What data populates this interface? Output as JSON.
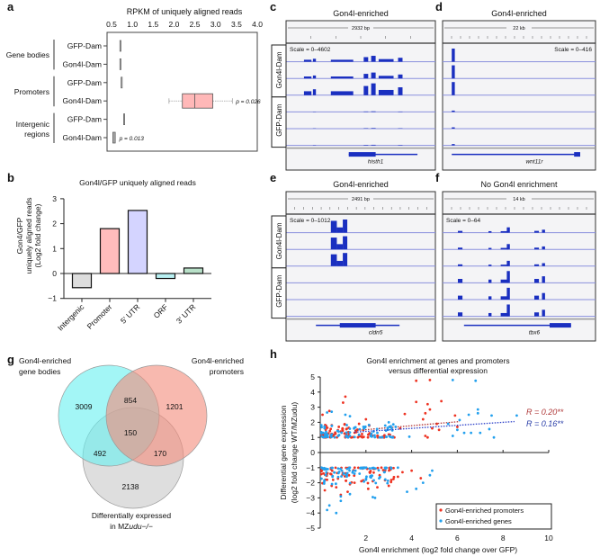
{
  "panels": {
    "a": {
      "label": "a"
    },
    "b": {
      "label": "b"
    },
    "c": {
      "label": "c"
    },
    "d": {
      "label": "d"
    },
    "e": {
      "label": "e"
    },
    "f": {
      "label": "f"
    },
    "g": {
      "label": "g"
    },
    "h": {
      "label": "h"
    }
  },
  "chart_data": [
    {
      "id": "a",
      "type": "box",
      "title": "RPKM of uniquely aligned reads",
      "xlim": [
        0.5,
        4.0
      ],
      "xticks": [
        "0.5",
        "1.0",
        "1.5",
        "2.0",
        "2.5",
        "3.0",
        "3.5",
        "4.0"
      ],
      "groups": [
        {
          "name": "Gene bodies",
          "rows": [
            {
              "label": "GFP-Dam",
              "min": 0.7,
              "q1": 0.7,
              "median": 0.7,
              "q3": 0.7,
              "max": 0.7,
              "fill": "#cccccc",
              "p": ""
            },
            {
              "label": "Gon4l-Dam",
              "min": 0.69,
              "q1": 0.7,
              "median": 0.7,
              "q3": 0.71,
              "max": 0.71,
              "fill": "#cccccc",
              "p": ""
            }
          ]
        },
        {
          "name": "Promoters",
          "rows": [
            {
              "label": "GFP-Dam",
              "min": 0.73,
              "q1": 0.73,
              "median": 0.73,
              "q3": 0.74,
              "max": 0.74,
              "fill": "#cccccc",
              "p": ""
            },
            {
              "label": "Gon4l-Dam",
              "min": 1.88,
              "q1": 2.2,
              "median": 2.5,
              "q3": 2.93,
              "max": 3.4,
              "fill": "#ffb8b8",
              "p": "p = 0.026"
            }
          ]
        },
        {
          "name": "Intergenic regions",
          "rows": [
            {
              "label": "GFP-Dam",
              "min": 0.79,
              "q1": 0.79,
              "median": 0.79,
              "q3": 0.8,
              "max": 0.8,
              "fill": "#cccccc",
              "p": ""
            },
            {
              "label": "Gon4l-Dam",
              "min": 0.52,
              "q1": 0.53,
              "median": 0.55,
              "q3": 0.59,
              "max": 0.6,
              "fill": "#aaaaaa",
              "p": "p = 0.013"
            }
          ]
        }
      ]
    },
    {
      "id": "b",
      "type": "bar",
      "title": "Gon4l/GFP uniquely aligned reads",
      "ylabel_lines": [
        "Gon4/GFP",
        "uniquely aligned reads",
        "(Log2 fold change)"
      ],
      "ylim": [
        -1,
        3
      ],
      "yticks": [
        "−1",
        "0",
        "1",
        "2",
        "3"
      ],
      "categories": [
        "Intergenic",
        "Promoter",
        "5′ UTR",
        "ORF",
        "3′ UTR"
      ],
      "values": [
        -0.57,
        1.8,
        2.53,
        -0.2,
        0.22
      ],
      "colors": [
        "#dddddd",
        "#ffbcbc",
        "#d4d4ff",
        "#b8f0f2",
        "#b8e0c8"
      ]
    },
    {
      "id": "g",
      "type": "venn",
      "sets": [
        {
          "name": "Gon4l-enriched gene bodies",
          "lines": [
            "Gon4l-enriched",
            "gene bodies"
          ],
          "color": "#66f0f0"
        },
        {
          "name": "Gon4l-enriched promoters",
          "lines": [
            "Gon4l-enriched",
            "promoters"
          ],
          "color": "#f48a7a"
        },
        {
          "name": "Differentially expressed in MZudu−/−",
          "lines": [
            "Differentially expressed",
            "in MZ",
            "udu−/−"
          ],
          "color": "#c8c8c8"
        }
      ],
      "regions": {
        "genes_only": 3009,
        "genes_promoters": 854,
        "promoters_only": 1201,
        "all_three": 150,
        "genes_de": 492,
        "promoters_de": 170,
        "de_only": 2138
      }
    },
    {
      "id": "h",
      "type": "scatter",
      "title_lines": [
        "Gon4l enrichment at genes and promoters",
        "versus differential expression"
      ],
      "xlabel": "Gon4l enrichment (log2 fold change over GFP)",
      "ylabel_lines": [
        "Differential gene expression",
        "(log2 fold change WT/MZudu)"
      ],
      "xlim": [
        0,
        10
      ],
      "ylim": [
        -5,
        5
      ],
      "xticks": [
        "2",
        "4",
        "6",
        "8",
        "10"
      ],
      "yticks": [
        "−5",
        "−4",
        "−3",
        "−2",
        "−1",
        "0",
        "1",
        "2",
        "3",
        "4",
        "5"
      ],
      "series": [
        {
          "name": "Gon4l-enriched promoters",
          "color": "#ee3322",
          "trend": {
            "x0": 1.5,
            "y0": 1.45,
            "x1": 6.1,
            "y1": 2.05,
            "label": "R = 0.20**",
            "label_color": "#b03a3a"
          },
          "points_note": "approximate distribution",
          "points": [
            [
              0.1,
              2.5
            ],
            [
              0.4,
              2.75
            ],
            [
              1.0,
              3.3
            ],
            [
              1.1,
              3.7
            ],
            [
              4.2,
              4.75
            ],
            [
              4.8,
              4.8
            ],
            [
              4.2,
              3.35
            ],
            [
              4.7,
              3.2
            ],
            [
              5.3,
              3.4
            ],
            [
              4.8,
              2.85
            ],
            [
              4.6,
              2.6
            ],
            [
              3.7,
              2.55
            ],
            [
              5.9,
              2.45
            ],
            [
              4.5,
              2.2
            ],
            [
              5.1,
              1.9
            ],
            [
              4.9,
              1.6
            ],
            [
              5.2,
              1.5
            ],
            [
              4.6,
              1.1
            ],
            [
              4.7,
              1.0
            ],
            [
              6.0,
              1.7
            ],
            [
              2.0,
              2.2
            ],
            [
              1.7,
              1.9
            ],
            [
              3.5,
              1.6
            ],
            [
              3.0,
              1.2
            ],
            [
              2.5,
              1.1
            ],
            [
              2.8,
              1.05
            ],
            [
              0.2,
              -2.5
            ],
            [
              0.5,
              -2.2
            ],
            [
              0.9,
              -2.8
            ],
            [
              1.2,
              -2.6
            ],
            [
              1.5,
              -2.0
            ],
            [
              2.1,
              -2.4
            ],
            [
              2.3,
              -1.9
            ],
            [
              3.0,
              -2.2
            ],
            [
              3.4,
              -1.6
            ],
            [
              4.4,
              -1.7
            ],
            [
              4.0,
              -1.2
            ],
            [
              3.6,
              -1.3
            ],
            [
              2.6,
              -1.5
            ],
            [
              1.8,
              -1.9
            ],
            [
              0.3,
              -1.8
            ],
            [
              0.7,
              -2.3
            ],
            [
              1.3,
              -2.1
            ],
            [
              2.5,
              -2.3
            ]
          ]
        },
        {
          "name": "Gon4l-enriched genes",
          "color": "#22a0ee",
          "trend": {
            "x0": 1.5,
            "y0": 1.35,
            "x1": 8.5,
            "y1": 2.05,
            "label": "R = 0.16**",
            "label_color": "#2a3ea8"
          },
          "points_note": "approximate distribution",
          "points": [
            [
              0.5,
              2.7
            ],
            [
              0.3,
              2.65
            ],
            [
              1.1,
              2.5
            ],
            [
              1.3,
              2.4
            ],
            [
              5.8,
              4.8
            ],
            [
              6.8,
              4.75
            ],
            [
              6.9,
              2.85
            ],
            [
              6.9,
              2.6
            ],
            [
              6.5,
              2.5
            ],
            [
              7.5,
              2.45
            ],
            [
              8.6,
              2.45
            ],
            [
              6.1,
              2.15
            ],
            [
              5.6,
              1.9
            ],
            [
              6.0,
              1.5
            ],
            [
              7.4,
              1.55
            ],
            [
              7.6,
              1.0
            ],
            [
              6.6,
              1.3
            ],
            [
              5.8,
              1.1
            ],
            [
              6.3,
              1.3
            ],
            [
              7.0,
              1.3
            ],
            [
              3.0,
              2.0
            ],
            [
              3.3,
              1.7
            ],
            [
              3.9,
              1.05
            ],
            [
              2.5,
              1.3
            ],
            [
              0.3,
              -3.8
            ],
            [
              0.4,
              -3.5
            ],
            [
              0.7,
              -4.0
            ],
            [
              0.9,
              -2.9
            ],
            [
              0.9,
              -3.2
            ],
            [
              1.3,
              -2.75
            ],
            [
              2.4,
              -3.0
            ],
            [
              2.3,
              -2.95
            ],
            [
              3.8,
              -2.6
            ],
            [
              4.2,
              -2.4
            ],
            [
              4.5,
              -2.0
            ],
            [
              4.8,
              -1.5
            ],
            [
              4.9,
              -1.2
            ],
            [
              3.1,
              -1.0
            ],
            [
              3.4,
              -1.0
            ],
            [
              2.0,
              -1.8
            ],
            [
              1.5,
              -1.4
            ],
            [
              2.8,
              -1.3
            ]
          ]
        }
      ],
      "legend": {
        "position": "bottom-right",
        "entries": [
          "Gon4l-enriched promoters",
          "Gon4l-enriched genes"
        ]
      }
    }
  ],
  "tracks": [
    {
      "id": "c",
      "title": "Gon4l-enriched",
      "span": "2932 bp",
      "scale": "Scale = 0–4602",
      "scale_align": "left",
      "gene": "histh1",
      "groups": [
        "Gon4l-Dam",
        "GFP-Dam"
      ]
    },
    {
      "id": "d",
      "title": "Gon4l-enriched",
      "span": "22 kb",
      "scale": "Scale = 0–416",
      "scale_align": "right",
      "gene": "wnt11r",
      "groups": [
        "Gon4l-Dam",
        "GFP-Dam"
      ]
    },
    {
      "id": "e",
      "title": "Gon4l-enriched",
      "span": "2491 bp",
      "scale": "Scale = 0–1012",
      "scale_align": "left",
      "gene": "cldn5",
      "groups": [
        "Gon4l-Dam",
        "GFP-Dam"
      ]
    },
    {
      "id": "f",
      "title": "No Gon4l enrichment",
      "span": "14 kb",
      "scale": "Scale = 0–64",
      "scale_align": "left",
      "gene": "tbx6",
      "groups": [
        "Gon4l-Dam",
        "GFP-Dam"
      ]
    }
  ]
}
